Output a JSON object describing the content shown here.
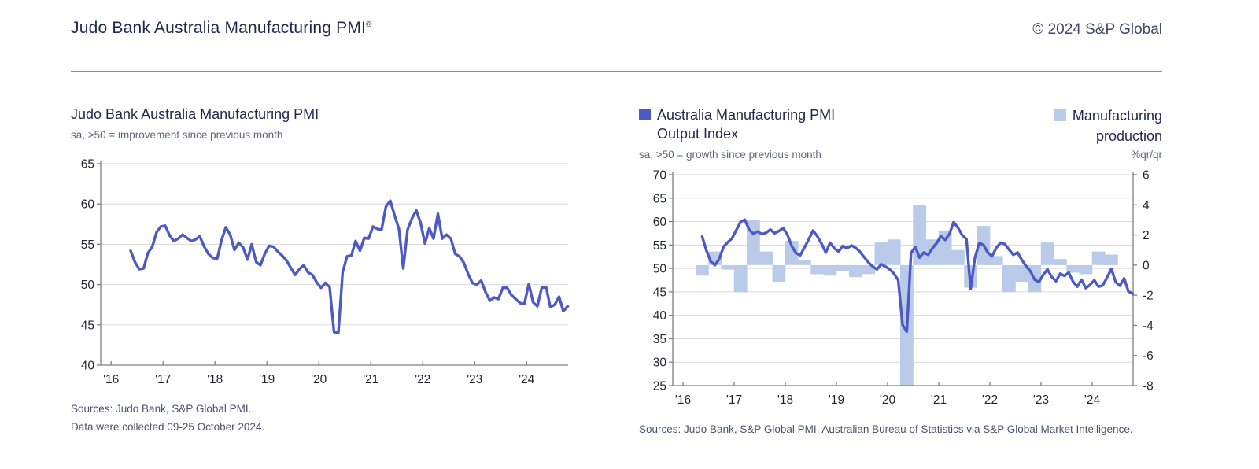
{
  "header": {
    "title": "Judo Bank Australia Manufacturing PMI",
    "registered_mark": "®",
    "copyright": "© 2024 S&P Global"
  },
  "left_panel": {
    "title": "Judo Bank Australia Manufacturing PMI",
    "subtitle": "sa, >50 = improvement since previous month",
    "sources_line1": "Sources: Judo Bank, S&P Global PMI.",
    "sources_line2": "Data were collected 09-25 October 2024."
  },
  "right_panel": {
    "legend_line_series_label1": "Australia Manufacturing PMI",
    "legend_line_series_label2": "Output Index",
    "subtitle": "sa, >50 = growth since previous month",
    "legend_bar_series_label1": "Manufacturing",
    "legend_bar_series_label2": "production",
    "bar_unit": "%qr/qr",
    "sources": "Sources: Judo Bank, S&P Global PMI, Australian Bureau of Statistics via S&P Global Market Intelligence."
  },
  "colors": {
    "line": "#4d59c4",
    "bar": "#b9cbe9",
    "grid": "#d9d9d9",
    "axis": "#7f7f7f",
    "tick_text": "#1f2430",
    "navy_text": "#1f2a4a",
    "gray_text": "#5d6678"
  },
  "chart_data": [
    {
      "type": "line",
      "title": "Judo Bank Australia Manufacturing PMI",
      "subtitle": "sa, >50 = improvement since previous month",
      "series_name": "Manufacturing PMI (sa)",
      "x_start_month": "2016-05",
      "x_end_month": "2024-10",
      "xtick_labels": [
        "'16",
        "'17",
        "'18",
        "'19",
        "'20",
        "'21",
        "'22",
        "'23",
        "'24"
      ],
      "ytick_labels": [
        65,
        60,
        55,
        50,
        45,
        40
      ],
      "ylim": [
        40,
        65
      ],
      "grid": true,
      "values": [
        54.2,
        52.8,
        51.9,
        52.0,
        53.9,
        54.7,
        56.5,
        57.2,
        57.3,
        56.1,
        55.4,
        55.7,
        56.2,
        55.8,
        55.4,
        55.6,
        56.0,
        54.7,
        53.8,
        53.3,
        53.2,
        55.5,
        57.1,
        56.2,
        54.3,
        55.2,
        54.6,
        53.1,
        55.0,
        52.8,
        52.4,
        53.8,
        54.8,
        54.7,
        54.1,
        53.6,
        53.0,
        52.1,
        51.2,
        51.9,
        52.4,
        51.5,
        51.2,
        50.3,
        49.6,
        50.2,
        49.7,
        44.1,
        44.0,
        51.5,
        53.5,
        53.6,
        55.4,
        54.2,
        55.8,
        55.7,
        57.2,
        56.9,
        56.8,
        59.7,
        60.4,
        58.6,
        56.9,
        52.0,
        56.8,
        58.2,
        59.2,
        57.7,
        55.1,
        57.0,
        55.7,
        58.8,
        55.7,
        56.2,
        55.7,
        53.8,
        53.5,
        52.7,
        51.3,
        50.2,
        50.0,
        50.5,
        49.1,
        48.0,
        48.4,
        48.2,
        49.6,
        49.6,
        48.7,
        48.2,
        47.7,
        47.6,
        50.1,
        47.8,
        47.3,
        49.6,
        49.7,
        47.2,
        47.5,
        48.5,
        46.7,
        47.3
      ]
    },
    {
      "type": "line+bar",
      "title": "Australia Manufacturing PMI Output Index",
      "subtitle": "sa, >50 = growth since previous month",
      "line_series_name": "Australia Manufacturing PMI Output Index",
      "bar_series_name": "Manufacturing production (%qr/qr)",
      "x_start_month": "2016-05",
      "x_end_month": "2024-10",
      "xtick_labels": [
        "'16",
        "'17",
        "'18",
        "'19",
        "'20",
        "'21",
        "'22",
        "'23",
        "'24"
      ],
      "ytick_labels_left": [
        70,
        65,
        60,
        55,
        50,
        45,
        40,
        35,
        30,
        25
      ],
      "ytick_labels_right": [
        6,
        4,
        2,
        0,
        -2,
        -4,
        -6,
        -8
      ],
      "ylim_left": [
        25,
        70
      ],
      "ylim_right": [
        -8,
        6
      ],
      "grid": true,
      "line_values": [
        56.8,
        53.8,
        51.5,
        50.7,
        52.0,
        54.6,
        55.6,
        56.4,
        58.2,
        59.9,
        60.4,
        58.3,
        57.4,
        57.9,
        57.3,
        57.6,
        58.3,
        57.5,
        58.0,
        58.6,
        57.2,
        54.8,
        53.3,
        52.8,
        54.5,
        56.2,
        58.1,
        56.9,
        55.3,
        53.4,
        55.5,
        54.3,
        53.6,
        54.8,
        54.3,
        54.9,
        54.4,
        53.6,
        52.4,
        51.3,
        50.4,
        49.8,
        50.9,
        50.4,
        49.8,
        48.9,
        47.5,
        38.0,
        36.5,
        53.3,
        54.6,
        52.3,
        53.4,
        52.9,
        54.3,
        55.4,
        56.9,
        56.1,
        57.3,
        59.9,
        58.7,
        57.1,
        56.3,
        45.6,
        52.3,
        55.4,
        55.0,
        53.4,
        52.6,
        54.4,
        55.5,
        55.2,
        54.0,
        52.9,
        53.4,
        51.8,
        50.5,
        49.4,
        47.6,
        47.1,
        48.6,
        49.8,
        48.2,
        47.3,
        48.9,
        48.4,
        49.1,
        47.2,
        46.1,
        47.6,
        45.8,
        46.5,
        47.5,
        46.1,
        46.4,
        48.1,
        49.9,
        47.1,
        46.3,
        47.9,
        45.1,
        44.6
      ],
      "bar_start_quarter": "2016-Q2",
      "bar_values": [
        -0.7,
        0.9,
        -0.3,
        -1.8,
        3.0,
        0.9,
        -1.1,
        1.6,
        0.3,
        -0.6,
        -0.7,
        -0.4,
        -0.8,
        -0.6,
        1.5,
        1.7,
        -8.0,
        4.0,
        1.7,
        2.3,
        1.0,
        -1.5,
        2.6,
        0.6,
        -1.8,
        -1.1,
        -1.8,
        1.5,
        0.4,
        -0.5,
        -0.6,
        0.9,
        0.7
      ],
      "bar_clipped_at_axis_index": 16
    }
  ]
}
